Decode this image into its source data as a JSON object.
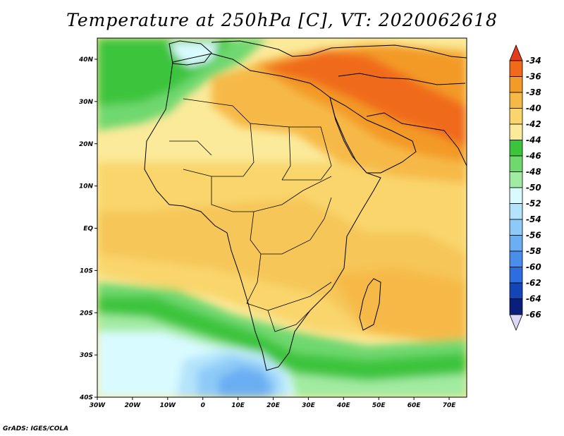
{
  "title": "Temperature at 250hPa [C], VT: 2020062618",
  "credit": "GrADS: IGES/COLA",
  "map": {
    "region": "Africa and Middle East",
    "projection": "latlon",
    "lon_range": [
      -30,
      75
    ],
    "lat_range": [
      -40,
      45
    ],
    "lon_ticks": [
      "30W",
      "20W",
      "10W",
      "0",
      "10E",
      "20E",
      "30E",
      "40E",
      "50E",
      "60E",
      "70E"
    ],
    "lat_ticks": [
      "40N",
      "30N",
      "20N",
      "10N",
      "EQ",
      "10S",
      "20S",
      "30S",
      "40S"
    ]
  },
  "colorbar": {
    "labels": [
      "-34",
      "-36",
      "-38",
      "-40",
      "-42",
      "-44",
      "-46",
      "-48",
      "-50",
      "-52",
      "-54",
      "-56",
      "-58",
      "-60",
      "-62",
      "-64",
      "-66"
    ],
    "colors": [
      "#e63c1e",
      "#f06a1a",
      "#f39a28",
      "#f6b946",
      "#f9d56c",
      "#fbea9a",
      "#3cc43c",
      "#6fd86f",
      "#a2eba2",
      "#d9fbff",
      "#b4e3fb",
      "#8ecaf7",
      "#6aaef3",
      "#4a8eeb",
      "#2c6ddf",
      "#1345b8",
      "#0a1f7a"
    ]
  }
}
